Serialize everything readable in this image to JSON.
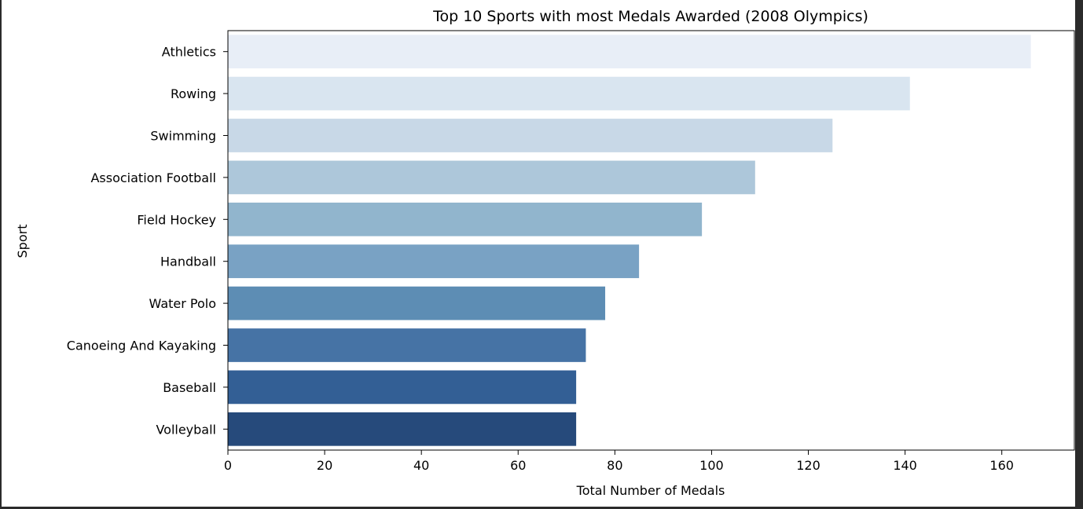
{
  "chart_data": {
    "type": "bar",
    "orientation": "horizontal",
    "title": "Top 10 Sports with most Medals Awarded (2008 Olympics)",
    "xlabel": "Total Number of Medals",
    "ylabel": "Sport",
    "categories": [
      "Athletics",
      "Rowing",
      "Swimming",
      "Association Football",
      "Field Hockey",
      "Handball",
      "Water Polo",
      "Canoeing And Kayaking",
      "Baseball",
      "Volleyball"
    ],
    "values": [
      166,
      141,
      125,
      109,
      98,
      85,
      78,
      74,
      72,
      72
    ],
    "xlim": [
      0,
      175
    ],
    "xticks": [
      0,
      20,
      40,
      60,
      80,
      100,
      120,
      140,
      160
    ],
    "grid": false,
    "colors": [
      "#e8eef7",
      "#d9e5f0",
      "#c8d8e7",
      "#adc7da",
      "#91b5cd",
      "#79a2c4",
      "#5d8db4",
      "#4673a5",
      "#335f95",
      "#264a7b"
    ]
  }
}
